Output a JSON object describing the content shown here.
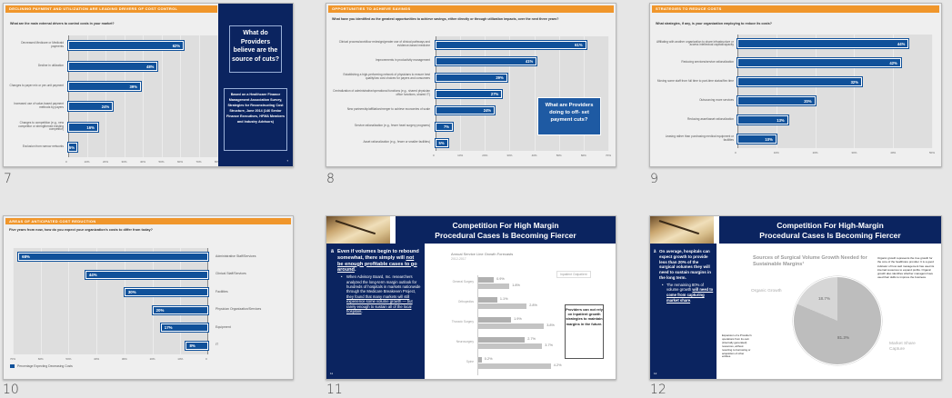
{
  "slides": [
    {
      "number": "7",
      "header": "DECLINING PAYMENT AND UTILIZATION ARE LEADING DRIVERS OF COST CONTROL",
      "question": "What are the main external drivers to control costs in your market?",
      "side_question": "What do Providers believe are the source of cuts?",
      "source_note": "Based on a Healthcare Finance Management Association Survey, Strategies for Reconstructing Cost Structure, June 2014 (146 Senior Finance Executives, HFMA Members and Industry Advisors)",
      "page_marker": "7"
    },
    {
      "number": "8",
      "header": "OPPORTUNITIES TO ACHIEVE SAVINGS",
      "question": "What have you identified as the greatest opportunities to achieve savings, either directly or through utilization impacts, over the next three years?",
      "callout": "What are Providers doing to off- set payment cuts?"
    },
    {
      "number": "9",
      "header": "STRATEGIES TO REDUCE COSTS",
      "question": "What strategies, if any, is your organization employing to reduce its costs?"
    },
    {
      "number": "10",
      "header": "AREAS OF ANTICIPATED COST REDUCTION",
      "question": "Five years from now, how do you expect your organization's costs to differ from today?",
      "legend": "Percentage Expecting Decreasing Costs"
    },
    {
      "number": "11",
      "title_line1": "Competition For High Margin",
      "title_line2": "Procedural Cases Is Becoming Fiercer",
      "bullet_marker": "ã",
      "bullet_pre": "Even if volumes begin to rebound somewhat, there simply will ",
      "bullet_underlined": "not be enough profitable cases to go around",
      "bullet_post": ".",
      "sub_pre": "When Advisory Board, Inc. researchers analyzed the long-term margin outlook for hundreds of hospitals in markets nationwide through the Medicare Breakeven Project, ",
      "sub_underlined": "they found that many markets will still experience some volume growth — but rarely enough to sustain all of the local hospitals",
      "sub_post": ".",
      "chart_title": "Annual Service Line Growth Forecasts",
      "chart_subtitle": "2012-2017",
      "legend": "Inpatient  Outpatient",
      "note": "Providers can not rely on Inpatient growth strategies to maintain margins in the future.",
      "page_marker": "11"
    },
    {
      "number": "12",
      "title_line1": "Competition For High-Margin",
      "title_line2": "Procedural Cases Is Becoming Fiercer",
      "bullet_marker": "ã",
      "bullet_text": "On average, hospitals can expect growth to provide less than 20% of the surgical volumes they will need to sustain margins in the long term.",
      "sub_pre": "The remaining 80% of volume growth ",
      "sub_underlined": "will need to come from capturing market share",
      "sub_post": ".",
      "chart_title": "Sources of Surgical Volume Growth Needed for Sustainable Margins¹",
      "left_note": "Expansion of a Provider's operations from its own (internally generated) resources, without resorting to borrowing or acquisition of other entities.",
      "right_note": "Organic growth represents the true growth for the core of the healthcare provider. It is a good indicator of how well management has used its internal resources to expand profits. Organic growth also identifies whether managers have used their skills to improve the business.",
      "page_marker": "12"
    }
  ],
  "chart_data": [
    {
      "type": "bar",
      "title": "What are the main external drivers to control costs in your market?",
      "categories": [
        "Decreased Medicare or Medicaid payments",
        "Decline in utilization",
        "Changes to payer mix or per-unit payment",
        "Increased use of value-based payment methods by payers",
        "Changes to competition (e.g., new competitor or strengthened existing competitor)",
        "Exclusion from narrow networks"
      ],
      "values": [
        62,
        48,
        39,
        24,
        16,
        5
      ],
      "value_labels": [
        "62%",
        "48%",
        "39%",
        "24%",
        "16%",
        "5%"
      ],
      "ticks": [
        "0",
        "10%",
        "20%",
        "30%",
        "40%",
        "50%",
        "60%",
        "70%",
        "80%"
      ],
      "xlim": [
        0,
        80
      ],
      "orientation": "horizontal"
    },
    {
      "type": "bar",
      "title": "What have you identified as the greatest opportunities to achieve savings?",
      "categories": [
        "Clinical process/workflow redesign/greater use of clinical pathways and evidence-based medicine",
        "Improvements in productivity management",
        "Establishing a high-performing network of physicians to ensure best quality/low cost choices for payers and consumers",
        "Centralization of administrative/operational functions (e.g., shared physician office functions, shared IT)",
        "New partnership/affiliation/merger to achieve economies of scale",
        "Service rationalization (e.g., fewer heart surgery programs)",
        "Asset rationalization (e.g., fewer or smaller facilities)"
      ],
      "values": [
        61,
        41,
        29,
        27,
        24,
        7,
        5
      ],
      "value_labels": [
        "61%",
        "41%",
        "29%",
        "27%",
        "24%",
        "7%",
        "5%"
      ],
      "ticks": [
        "0",
        "10%",
        "20%",
        "30%",
        "40%",
        "50%",
        "60%",
        "70%"
      ],
      "xlim": [
        0,
        70
      ],
      "orientation": "horizontal"
    },
    {
      "type": "bar",
      "title": "What strategies, if any, is your organization employing to reduce its costs?",
      "categories": [
        "Affiliating with another organization to share infrastructure or access intellectual capital/capacity",
        "Reducing services/service rationalization",
        "Moving some staff from full time to part-time status/flex time",
        "Outsourcing more services",
        "Reducing asset/asset rationalization",
        "Leasing rather than purchasing medical equipment or facilities"
      ],
      "values": [
        44,
        42,
        32,
        20,
        13,
        10
      ],
      "value_labels": [
        "44%",
        "42%",
        "32%",
        "20%",
        "13%",
        "10%"
      ],
      "ticks": [
        "0",
        "10%",
        "20%",
        "30%",
        "40%",
        "50%"
      ],
      "xlim": [
        0,
        50
      ],
      "orientation": "horizontal"
    },
    {
      "type": "bar",
      "title": "Five years from now, how do you expect your organization's costs to differ from today?",
      "categories": [
        "Administrative Staff/Services",
        "Clinical Staff/Services",
        "Facilities",
        "Physician Organization/Services",
        "Equipment",
        "IT"
      ],
      "values": [
        68,
        44,
        30,
        20,
        17,
        8
      ],
      "value_labels": [
        "68%",
        "44%",
        "30%",
        "20%",
        "17%",
        "8%"
      ],
      "ticks": [
        "70%",
        "60%",
        "50%",
        "40%",
        "30%",
        "20%",
        "10%",
        "0"
      ],
      "xlim": [
        70,
        0
      ],
      "legend": [
        "Percentage Expecting Decreasing Costs"
      ],
      "orientation": "horizontal-reversed"
    },
    {
      "type": "bar",
      "title": "Annual Service Line Growth Forecasts",
      "subtitle": "2012-2017",
      "categories": [
        "General Surgery",
        "Orthopedics",
        "Thoracic Surgery",
        "Neurosurgery",
        "Spine"
      ],
      "series": [
        {
          "name": "Inpatient",
          "values": [
            0.9,
            1.1,
            1.9,
            2.7,
            0.2
          ],
          "labels": [
            "0.9%",
            "1.1%",
            "1.9%",
            "2.7%",
            "0.2%"
          ]
        },
        {
          "name": "Outpatient",
          "values": [
            1.8,
            2.8,
            3.8,
            3.7,
            4.2
          ],
          "labels": [
            "1.8%",
            "2.8%",
            "3.8%",
            "3.7%",
            "4.2%"
          ]
        }
      ],
      "orientation": "horizontal"
    },
    {
      "type": "pie",
      "title": "Sources of Surgical Volume Growth Needed for Sustainable Margins¹",
      "categories": [
        "Organic Growth",
        "Market Share Capture"
      ],
      "values": [
        18.7,
        81.3
      ],
      "value_labels": [
        "18.7%",
        "81.3%"
      ]
    }
  ]
}
